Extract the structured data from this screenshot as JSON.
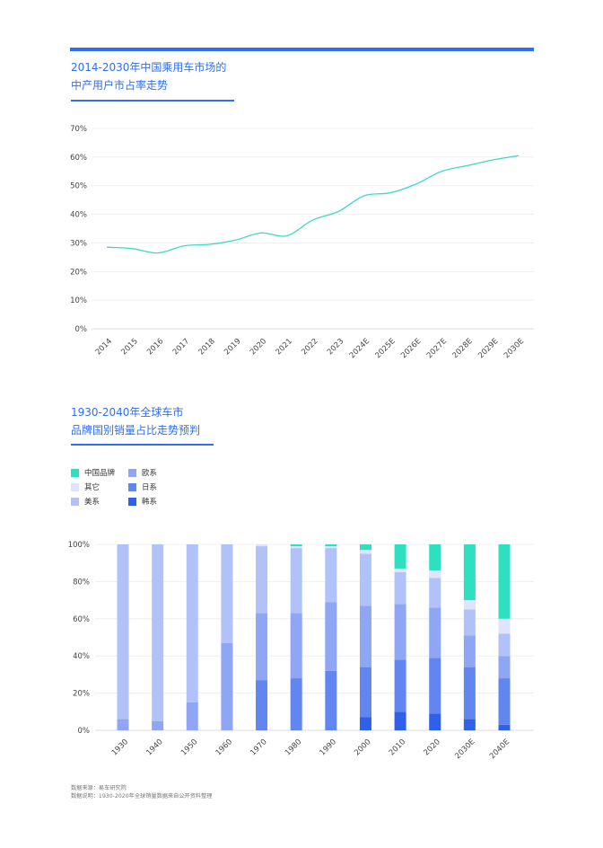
{
  "colors": {
    "accent": "#2f6ef0",
    "line": "#3dd9c8",
    "china": "#2fe0c0",
    "other": "#dfe3fb",
    "us": "#b0c2f8",
    "eu": "#8ea6f3",
    "jp": "#6286ef",
    "kr": "#2f60ea"
  },
  "chart1": {
    "title_line1": "2014-2030年中国乘用车市场的",
    "title_line2": "中产用户市占率走势"
  },
  "chart2": {
    "title_line1": "1930-2040年全球车市",
    "title_line2": "品牌国别销量占比走势预判"
  },
  "footnote": {
    "source": "数据来源：易车研究院",
    "note": "数据说明：1930-2020年全球销量数据来自公开资料整理"
  },
  "chart_data": [
    {
      "type": "line",
      "title": "2014-2030年中国乘用车市场的中产用户市占率走势",
      "categories": [
        "2014",
        "2015",
        "2016",
        "2017",
        "2018",
        "2019",
        "2020",
        "2021",
        "2022",
        "2023",
        "2024E",
        "2025E",
        "2026E",
        "2027E",
        "2028E",
        "2029E",
        "2030E"
      ],
      "values": [
        28.5,
        28,
        26.5,
        29,
        29.5,
        31,
        33.5,
        32.5,
        38,
        41,
        46.5,
        47.5,
        50.5,
        55,
        57,
        59,
        60.5
      ],
      "yticks": [
        "0%",
        "10%",
        "20%",
        "30%",
        "40%",
        "50%",
        "60%",
        "70%"
      ],
      "ylim": [
        0,
        70
      ],
      "grid": true
    },
    {
      "type": "bar",
      "stacked": true,
      "title": "1930-2040年全球车市品牌国别销量占比走势预判",
      "categories": [
        "1930",
        "1940",
        "1950",
        "1960",
        "1970",
        "1980",
        "1990",
        "2000",
        "2010",
        "2020",
        "2030E",
        "2040E"
      ],
      "yticks": [
        "0%",
        "20%",
        "40%",
        "60%",
        "80%",
        "100%"
      ],
      "ylim": [
        0,
        100
      ],
      "legend_position": "top-left",
      "series": [
        {
          "name": "韩系",
          "color_key": "kr",
          "values": [
            0,
            0,
            0,
            0,
            0,
            0,
            0,
            7,
            10,
            9,
            6,
            3
          ]
        },
        {
          "name": "日系",
          "color_key": "jp",
          "values": [
            0,
            0,
            0,
            0,
            27,
            28,
            32,
            27,
            28,
            30,
            28,
            25
          ]
        },
        {
          "name": "欧系",
          "color_key": "eu",
          "values": [
            6,
            5,
            15,
            47,
            36,
            35,
            37,
            33,
            30,
            27,
            17,
            12
          ]
        },
        {
          "name": "美系",
          "color_key": "us",
          "values": [
            94,
            95,
            85,
            53,
            36,
            35,
            29,
            28,
            17,
            16,
            14,
            12
          ]
        },
        {
          "name": "其它",
          "color_key": "other",
          "values": [
            0,
            0,
            0,
            0,
            1,
            1,
            1,
            2,
            2,
            4,
            5,
            8
          ]
        },
        {
          "name": "中国品牌",
          "color_key": "china",
          "values": [
            0,
            0,
            0,
            0,
            0,
            1,
            1,
            3,
            13,
            14,
            30,
            40
          ]
        }
      ],
      "legend_order": [
        "中国品牌",
        "欧系",
        "其它",
        "日系",
        "美系",
        "韩系"
      ]
    }
  ]
}
